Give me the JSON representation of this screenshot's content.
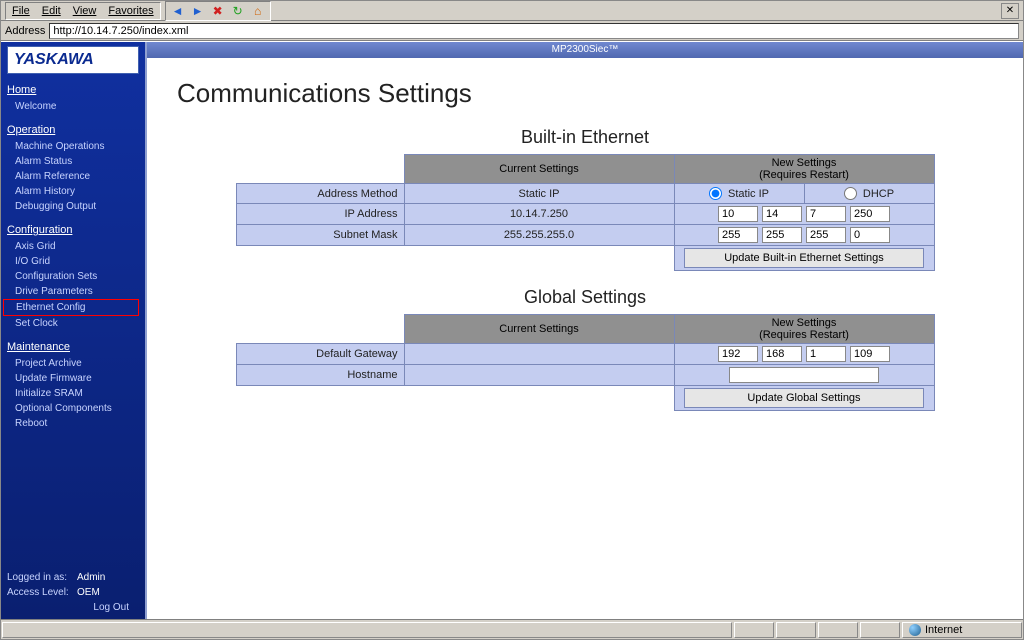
{
  "menubar": {
    "items": [
      "File",
      "Edit",
      "View",
      "Favorites"
    ]
  },
  "addressbar": {
    "label": "Address",
    "url": "http://10.14.7.250/index.xml"
  },
  "logo": "YASKAWA",
  "sidebar": {
    "groups": [
      {
        "title": "Home",
        "items": [
          "Welcome"
        ]
      },
      {
        "title": "Operation",
        "items": [
          "Machine Operations",
          "Alarm Status",
          "Alarm Reference",
          "Alarm History",
          "Debugging Output"
        ]
      },
      {
        "title": "Configuration",
        "items": [
          "Axis Grid",
          "I/O Grid",
          "Configuration Sets",
          "Drive Parameters",
          "Ethernet Config",
          "Set Clock"
        ],
        "highlight_index": 4
      },
      {
        "title": "Maintenance",
        "items": [
          "Project Archive",
          "Update Firmware",
          "Initialize SRAM",
          "Optional Components",
          "Reboot"
        ]
      }
    ],
    "footer": {
      "logged_label": "Logged in as:",
      "logged_value": "Admin",
      "access_label": "Access Level:",
      "access_value": "OEM",
      "logout": "Log Out"
    }
  },
  "product_bar": "MP2300Siec™",
  "page_title": "Communications Settings",
  "builtin": {
    "heading": "Built-in Ethernet",
    "col_current": "Current Settings",
    "col_new": "New Settings",
    "col_new_sub": "(Requires Restart)",
    "rows": {
      "addr_method": {
        "label": "Address Method",
        "current": "Static IP",
        "radio_static": "Static IP",
        "radio_dhcp": "DHCP",
        "static_selected": true
      },
      "ip": {
        "label": "IP Address",
        "current": "10.14.7.250",
        "new": [
          "10",
          "14",
          "7",
          "250"
        ]
      },
      "subnet": {
        "label": "Subnet Mask",
        "current": "255.255.255.0",
        "new": [
          "255",
          "255",
          "255",
          "0"
        ]
      }
    },
    "update_btn": "Update Built-in Ethernet Settings"
  },
  "global": {
    "heading": "Global Settings",
    "col_current": "Current Settings",
    "col_new": "New Settings",
    "col_new_sub": "(Requires Restart)",
    "rows": {
      "gateway": {
        "label": "Default Gateway",
        "current": "",
        "new": [
          "192",
          "168",
          "1",
          "109"
        ]
      },
      "hostname": {
        "label": "Hostname",
        "current": "",
        "new": ""
      }
    },
    "update_btn": "Update Global Settings"
  },
  "statusbar": {
    "internet": "Internet"
  },
  "colors": {
    "header_bg": "#909090",
    "cell_bg": "#c4cdf0",
    "border": "#7a88b8",
    "sidebar_top": "#1030a0",
    "sidebar_bottom": "#0a1f70"
  }
}
